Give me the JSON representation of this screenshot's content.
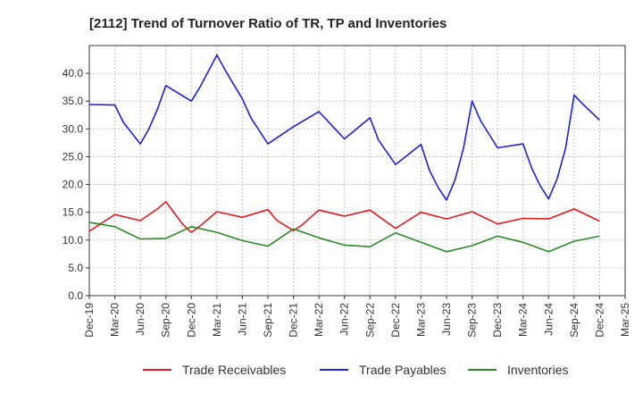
{
  "chart_data": {
    "type": "line",
    "title": "[2112]  Trend of Turnover Ratio of TR, TP and Inventories",
    "xlabel": "",
    "ylabel": "",
    "ylim": [
      0,
      45
    ],
    "yticks": [
      "0.0",
      "5.0",
      "10.0",
      "15.0",
      "20.0",
      "25.0",
      "30.0",
      "35.0",
      "40.0"
    ],
    "ytick_values": [
      0,
      5,
      10,
      15,
      20,
      25,
      30,
      35,
      40
    ],
    "xlim": [
      0,
      63
    ],
    "xticks": [
      "Dec-19",
      "Mar-20",
      "Jun-20",
      "Sep-20",
      "Dec-20",
      "Mar-21",
      "Jun-21",
      "Sep-21",
      "Dec-21",
      "Mar-22",
      "Jun-22",
      "Sep-22",
      "Dec-22",
      "Mar-23",
      "Jun-23",
      "Sep-23",
      "Dec-23",
      "Mar-24",
      "Jun-24",
      "Sep-24",
      "Dec-24",
      "Mar-25"
    ],
    "xtick_positions": [
      0,
      3,
      6,
      9,
      12,
      15,
      18,
      21,
      24,
      27,
      30,
      33,
      36,
      39,
      42,
      45,
      48,
      51,
      54,
      57,
      60,
      63
    ],
    "grid": true,
    "legend_position": "bottom",
    "series": [
      {
        "name": "Trade Receivables",
        "color": "#e31a1c",
        "x": [
          0,
          3,
          6,
          8,
          9,
          11,
          12,
          13,
          15,
          18,
          21,
          22,
          24,
          25,
          27,
          30,
          33,
          36,
          39,
          42,
          45,
          48,
          51,
          54,
          57,
          60
        ],
        "y": [
          11.6,
          14.6,
          13.5,
          15.6,
          16.9,
          12.8,
          11.4,
          12.5,
          15.1,
          14.1,
          15.5,
          13.6,
          11.7,
          12.7,
          15.4,
          14.3,
          15.4,
          12.1,
          15.0,
          13.8,
          15.1,
          12.9,
          13.9,
          13.8,
          15.6,
          13.4
        ]
      },
      {
        "name": "Trade Payables",
        "color": "#1f1fd6",
        "x": [
          0,
          3,
          4,
          6,
          7,
          8,
          9,
          12,
          13,
          15,
          16,
          18,
          19,
          21,
          24,
          27,
          30,
          33,
          34,
          36,
          39,
          40,
          41,
          42,
          43,
          44,
          45,
          46,
          48,
          51,
          52,
          53,
          54,
          55,
          56,
          57,
          58,
          60
        ],
        "y": [
          34.4,
          34.3,
          31.2,
          27.3,
          30.0,
          33.5,
          37.8,
          35.0,
          37.5,
          43.3,
          40.5,
          35.4,
          32.0,
          27.3,
          30.4,
          33.1,
          28.2,
          32.0,
          28.0,
          23.6,
          27.2,
          22.5,
          19.5,
          17.2,
          20.8,
          26.5,
          35.0,
          31.5,
          26.6,
          27.3,
          23.0,
          19.8,
          17.4,
          21.0,
          26.5,
          36.1,
          34.5,
          31.6
        ]
      },
      {
        "name": "Inventories",
        "color": "#2a8a2a",
        "x": [
          0,
          3,
          6,
          9,
          12,
          15,
          18,
          21,
          24,
          27,
          30,
          33,
          36,
          39,
          42,
          45,
          48,
          51,
          54,
          57,
          60
        ],
        "y": [
          13.2,
          12.4,
          10.2,
          10.3,
          12.4,
          11.4,
          9.9,
          8.9,
          12.0,
          10.4,
          9.1,
          8.8,
          11.3,
          9.6,
          7.9,
          9.0,
          10.7,
          9.6,
          7.9,
          9.8,
          10.7
        ]
      }
    ]
  }
}
